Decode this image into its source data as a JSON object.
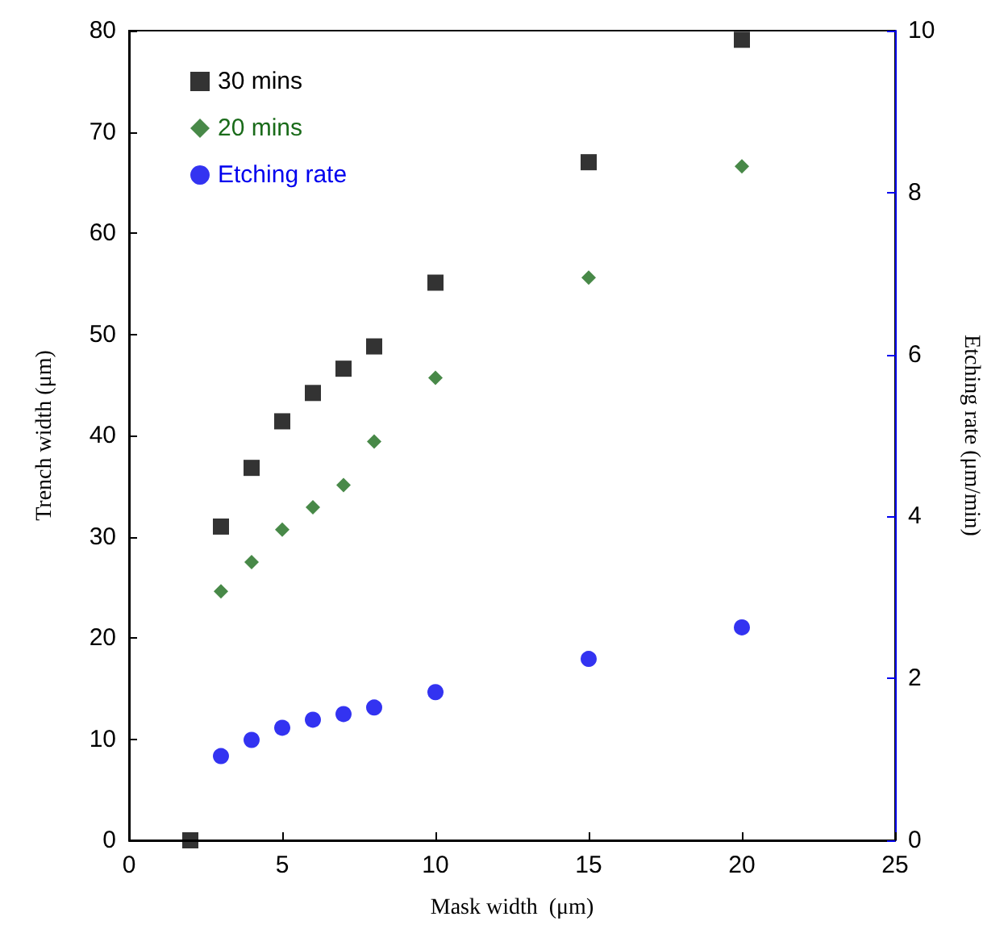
{
  "chart_data": {
    "type": "scatter",
    "xlabel": "Mask width  (μm)",
    "ylabel": "Trench width (μm)",
    "y2label": "Etching rate (μm/min)",
    "xlim": [
      0,
      25
    ],
    "xticks": [
      0,
      5,
      10,
      15,
      20,
      25
    ],
    "ylim": [
      0,
      80
    ],
    "yticks": [
      0,
      10,
      20,
      30,
      40,
      50,
      60,
      70,
      80
    ],
    "y2lim": [
      0,
      10
    ],
    "y2ticks": [
      0,
      2,
      4,
      6,
      8,
      10
    ],
    "grid": false,
    "legend": "top left",
    "series": [
      {
        "name": "30 mins",
        "color": "#000000",
        "marker": "square",
        "x": [
          2,
          3,
          4,
          5,
          6,
          7,
          8,
          10,
          15,
          20
        ],
        "values": [
          0,
          31.0,
          36.8,
          41.4,
          44.2,
          46.6,
          48.8,
          55.1,
          67.0,
          79.1
        ]
      },
      {
        "name": "20 mins",
        "color": "#1a6b1a",
        "marker": "diamond",
        "x": [
          3,
          4,
          5,
          6,
          7,
          8,
          10,
          15,
          20
        ],
        "values": [
          24.6,
          27.5,
          30.7,
          32.9,
          35.1,
          39.4,
          45.7,
          55.6,
          66.6
        ]
      },
      {
        "name": "Etching rate",
        "color": "#0000ee",
        "marker": "circle",
        "axis": "y2",
        "x": [
          3,
          4,
          5,
          6,
          7,
          8,
          10,
          15,
          20
        ],
        "values": [
          1.04,
          1.24,
          1.39,
          1.49,
          1.56,
          1.64,
          1.83,
          2.24,
          2.63
        ]
      }
    ]
  }
}
